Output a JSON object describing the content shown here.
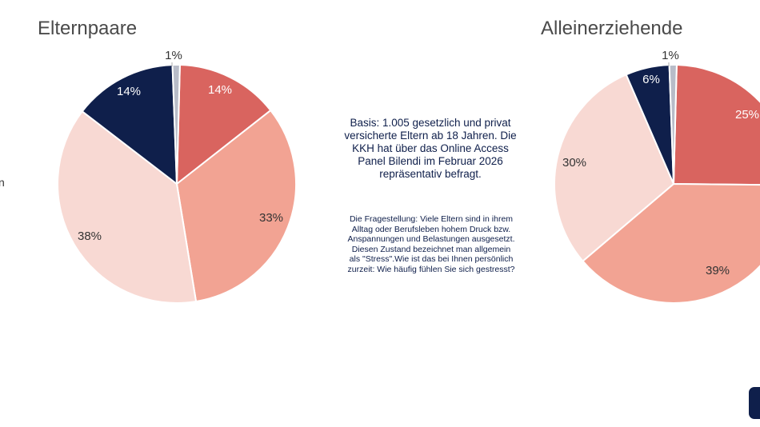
{
  "colors": {
    "sehr_haeufig": "#d9645f",
    "haeufig": "#f2a393",
    "selten": "#f8d9d3",
    "nie": "#0f1f4b",
    "keine_angabe": "#b8bcc8",
    "text_dark": "#0f1f4b"
  },
  "left_edge_text": "n",
  "description": {
    "basis": "Basis: 1.005 gesetzlich und privat versicherte Eltern ab 18 Jahren. Die KKH hat über das Online Access Panel Bilendi im Februar 2026 repräsentativ befragt.",
    "question": "Die Fragestellung: Viele Eltern sind in ihrem Alltag oder Berufsleben hohem Druck bzw. Anspannungen und Belastungen ausgesetzt. Diesen Zustand bezeichnet man allgemein als \"Stress\".Wie ist das bei Ihnen persönlich zurzeit: Wie häufig fühlen Sie sich gestresst?"
  },
  "logo": "kkh-logo-icon",
  "chart_data": [
    {
      "type": "pie",
      "title": "Elternpaare",
      "slices": [
        {
          "value": 14,
          "label": "14%",
          "color": "#d9645f"
        },
        {
          "value": 33,
          "label": "33%",
          "color": "#f2a393"
        },
        {
          "value": 38,
          "label": "38%",
          "color": "#f8d9d3"
        },
        {
          "value": 14,
          "label": "14%",
          "color": "#0f1f4b"
        },
        {
          "value": 1,
          "label": "1%",
          "color": "#b8bcc8"
        }
      ]
    },
    {
      "type": "pie",
      "title": "Alleinerziehende",
      "slices": [
        {
          "value": 25,
          "label": "25%",
          "color": "#d9645f"
        },
        {
          "value": 39,
          "label": "39%",
          "color": "#f2a393"
        },
        {
          "value": 30,
          "label": "30%",
          "color": "#f8d9d3"
        },
        {
          "value": 6,
          "label": "6%",
          "color": "#0f1f4b"
        },
        {
          "value": 1,
          "label": "1%",
          "color": "#b8bcc8"
        }
      ]
    }
  ]
}
